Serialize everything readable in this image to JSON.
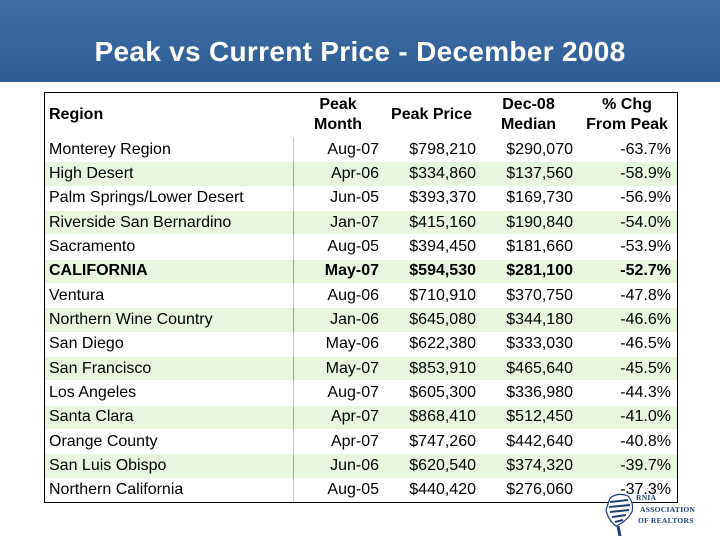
{
  "title": "Peak vs Current Price - December 2008",
  "table": {
    "headers": {
      "region": "Region",
      "peak_month_line1": "Peak",
      "peak_month_line2": "Month",
      "peak_price": "Peak Price",
      "median_line1": "Dec-08",
      "median_line2": "Median",
      "chg_line1": "% Chg",
      "chg_line2": "From Peak"
    },
    "rows": [
      {
        "region": "Monterey Region",
        "month": "Aug-07",
        "peak": "$798,210",
        "median": "$290,070",
        "chg": "-63.7%"
      },
      {
        "region": "High Desert",
        "month": "Apr-06",
        "peak": "$334,860",
        "median": "$137,560",
        "chg": "-58.9%"
      },
      {
        "region": "Palm Springs/Lower Desert",
        "month": "Jun-05",
        "peak": "$393,370",
        "median": "$169,730",
        "chg": "-56.9%"
      },
      {
        "region": "Riverside San Bernardino",
        "month": "Jan-07",
        "peak": "$415,160",
        "median": "$190,840",
        "chg": "-54.0%"
      },
      {
        "region": "Sacramento",
        "month": "Aug-05",
        "peak": "$394,450",
        "median": "$181,660",
        "chg": "-53.9%"
      },
      {
        "region": "CALIFORNIA",
        "month": "May-07",
        "peak": "$594,530",
        "median": "$281,100",
        "chg": "-52.7%"
      },
      {
        "region": "Ventura",
        "month": "Aug-06",
        "peak": "$710,910",
        "median": "$370,750",
        "chg": "-47.8%"
      },
      {
        "region": "Northern Wine Country",
        "month": "Jan-06",
        "peak": "$645,080",
        "median": "$344,180",
        "chg": "-46.6%"
      },
      {
        "region": "San Diego",
        "month": "May-06",
        "peak": "$622,380",
        "median": "$333,030",
        "chg": "-46.5%"
      },
      {
        "region": "San Francisco",
        "month": "May-07",
        "peak": "$853,910",
        "median": "$465,640",
        "chg": "-45.5%"
      },
      {
        "region": "Los Angeles",
        "month": "Aug-07",
        "peak": "$605,300",
        "median": "$336,980",
        "chg": "-44.3%"
      },
      {
        "region": "Santa Clara",
        "month": "Apr-07",
        "peak": "$868,410",
        "median": "$512,450",
        "chg": "-41.0%"
      },
      {
        "region": "Orange County",
        "month": "Apr-07",
        "peak": "$747,260",
        "median": "$442,640",
        "chg": "-40.8%"
      },
      {
        "region": "San Luis Obispo",
        "month": "Jun-06",
        "peak": "$620,540",
        "median": "$374,320",
        "chg": "-39.7%"
      },
      {
        "region": "Northern California",
        "month": "Aug-05",
        "peak": "$440,420",
        "median": "$276,060",
        "chg": "-37.3%"
      }
    ]
  },
  "logo": {
    "line1": "RNIA",
    "line2": "ASSOCIATION",
    "line3": "OF REALTORS",
    "icon": "realtors-association-logo"
  },
  "colors": {
    "title_bar": "#2f5d94",
    "stripe": "#e8f6dd"
  }
}
